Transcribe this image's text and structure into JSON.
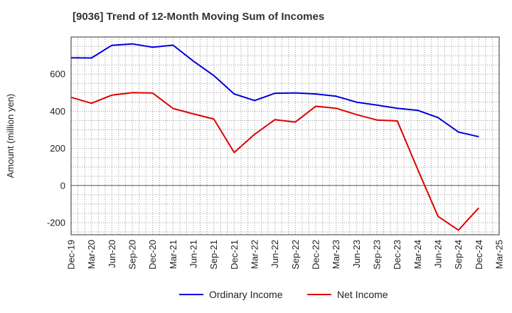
{
  "chart_data": {
    "type": "line",
    "title": "[9036]  Trend of 12-Month Moving Sum of Incomes",
    "xlabel": "",
    "ylabel": "Amount (million yen)",
    "ylim": [
      -265,
      800
    ],
    "yticks": [
      -200,
      0,
      200,
      400,
      600
    ],
    "categories": [
      "Dec-19",
      "Mar-20",
      "Jun-20",
      "Sep-20",
      "Dec-20",
      "Mar-21",
      "Jun-21",
      "Sep-21",
      "Dec-21",
      "Mar-22",
      "Jun-22",
      "Sep-22",
      "Dec-22",
      "Mar-23",
      "Jun-23",
      "Sep-23",
      "Dec-23",
      "Mar-24",
      "Jun-24",
      "Sep-24",
      "Dec-24",
      "Mar-25"
    ],
    "series": [
      {
        "name": "Ordinary Income",
        "color": "#0000dd",
        "values": [
          688,
          687,
          755,
          763,
          745,
          756,
          670,
          592,
          493,
          458,
          497,
          499,
          493,
          481,
          449,
          433,
          416,
          405,
          366,
          288,
          263,
          null
        ]
      },
      {
        "name": "Net Income",
        "color": "#dd0000",
        "values": [
          475,
          443,
          487,
          500,
          498,
          415,
          386,
          358,
          178,
          276,
          355,
          342,
          427,
          416,
          382,
          353,
          348,
          88,
          -166,
          -240,
          -120,
          null
        ]
      }
    ],
    "legend_position": "bottom-center",
    "grid": true
  }
}
